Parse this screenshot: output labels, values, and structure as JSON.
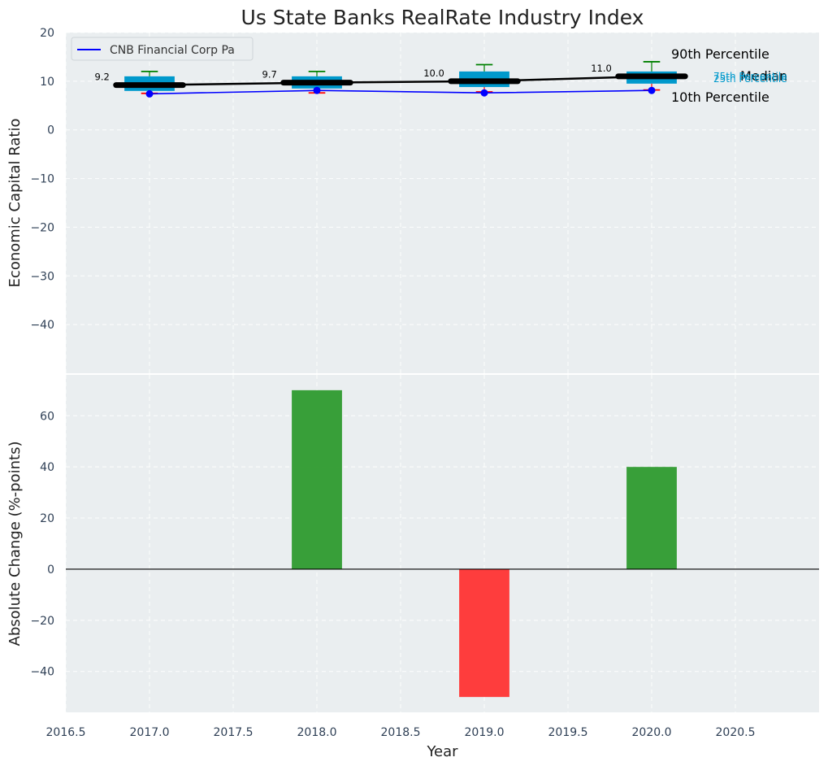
{
  "chart_data": {
    "title": "Us State Banks RealRate Industry Index",
    "xlabel": "Year",
    "x_ticks": [
      "2016.5",
      "2017.0",
      "2017.5",
      "2018.0",
      "2018.5",
      "2019.0",
      "2019.5",
      "2020.0",
      "2020.5"
    ],
    "xlim": [
      2016.5,
      2021.0
    ],
    "top": {
      "type": "box_line",
      "ylabel": "Economic Capital Ratio",
      "ylim": [
        -50,
        20
      ],
      "y_ticks": [
        "20",
        "10",
        "0",
        "−10",
        "−20",
        "−30",
        "−40"
      ],
      "years": [
        2017,
        2018,
        2019,
        2020
      ],
      "p90": [
        12.0,
        12.0,
        13.4,
        14.0
      ],
      "p75": [
        11.0,
        11.0,
        12.0,
        12.0
      ],
      "median": [
        9.2,
        9.7,
        10.0,
        11.0
      ],
      "median_labels": [
        "9.2",
        "9.7",
        "10.0",
        "11.0"
      ],
      "p25": [
        8.0,
        8.5,
        8.8,
        9.5
      ],
      "p10": [
        7.5,
        7.6,
        7.8,
        8.2
      ],
      "company": [
        7.4,
        8.1,
        7.6,
        8.1
      ],
      "legend": "CNB Financial Corp Pa",
      "annotations": {
        "p90": "90th Percentile",
        "median": "Median",
        "p10": "10th Percentile",
        "p75": "75th Percentile",
        "p25": "25th Percentile"
      }
    },
    "bottom": {
      "type": "bar",
      "ylabel": "Absolute Change (%-points)",
      "ylim": [
        -56,
        76
      ],
      "y_ticks": [
        "60",
        "40",
        "20",
        "0",
        "−20",
        "−40"
      ],
      "years": [
        2018,
        2019,
        2020
      ],
      "values": [
        70,
        -50,
        40
      ]
    },
    "colors": {
      "box": "#0099cc",
      "median": "#000000",
      "company": "#0000ff",
      "p90_whisker": "#008000",
      "p10_whisker": "#ff0000",
      "positive": "#2e9a2e",
      "negative": "#ff3333"
    }
  }
}
